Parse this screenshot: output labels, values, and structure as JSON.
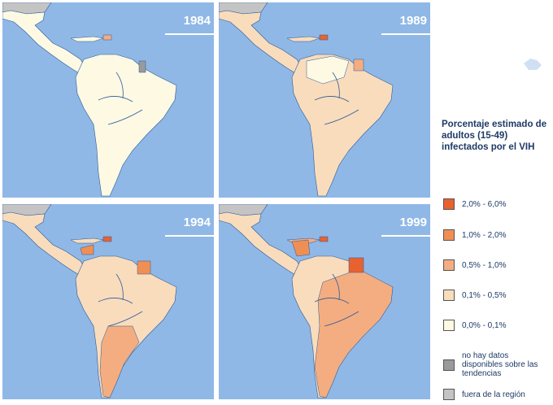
{
  "panels": [
    {
      "year": "1984"
    },
    {
      "year": "1989"
    },
    {
      "year": "1994"
    },
    {
      "year": "1999"
    }
  ],
  "legend": {
    "title": "Porcentaje estimado de adultos (15-49) infectados por el VIH",
    "items": [
      {
        "label": "2,0% - 6,0%",
        "color": "#e8622f"
      },
      {
        "label": "1,0% - 2,0%",
        "color": "#f08f53"
      },
      {
        "label": "0,5% - 1,0%",
        "color": "#f4ad80"
      },
      {
        "label": "0,1% - 0,5%",
        "color": "#f9dcbc"
      },
      {
        "label": "0,0% - 0,1%",
        "color": "#fdf9e3"
      },
      {
        "label": "no hay datos disponibles sobre las tendencias",
        "color": "#9a9a9a"
      },
      {
        "label": "fuera de la región",
        "color": "#c4c4c4"
      }
    ]
  },
  "colors": {
    "ocean": "#8fb8e6",
    "outside": "#c4c4c4",
    "nodata": "#9a9a9a",
    "border": "#2c5a9a"
  }
}
